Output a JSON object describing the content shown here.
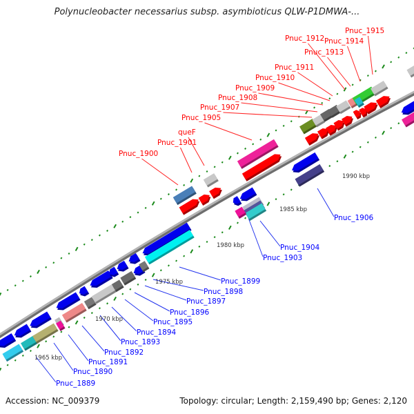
{
  "title": "Polynucleobacter necessarius subsp. asymbioticus QLW-P1DMWA-...",
  "footer": {
    "accession": "Accession: NC_009379",
    "summary": "Topology: circular; Length: 2,159,490 bp; Genes: 2,120"
  },
  "colors": {
    "forward_label": "#ff0000",
    "reverse_label": "#0000ff",
    "tick": "#1a8a1a",
    "backbone": "#8c8c8c"
  },
  "scale_labels": [
    "1965 kbp",
    "1970 kbp",
    "1975 kbp",
    "1980 kbp",
    "1985 kbp",
    "1990 kbp"
  ],
  "forward_labels": [
    "Pnuc_1900",
    "Pnuc_1901",
    "queF",
    "Pnuc_1905",
    "Pnuc_1907",
    "Pnuc_1908",
    "Pnuc_1909",
    "Pnuc_1910",
    "Pnuc_1911",
    "Pnuc_1912",
    "Pnuc_1913",
    "Pnuc_1914",
    "Pnuc_1915"
  ],
  "reverse_labels": [
    "Pnuc_1889",
    "Pnuc_1890",
    "Pnuc_1891",
    "Pnuc_1892",
    "Pnuc_1893",
    "Pnuc_1894",
    "Pnuc_1895",
    "Pnuc_1896",
    "Pnuc_1897",
    "Pnuc_1898",
    "Pnuc_1899",
    "Pnuc_1903",
    "Pnuc_1904",
    "Pnuc_1906"
  ]
}
